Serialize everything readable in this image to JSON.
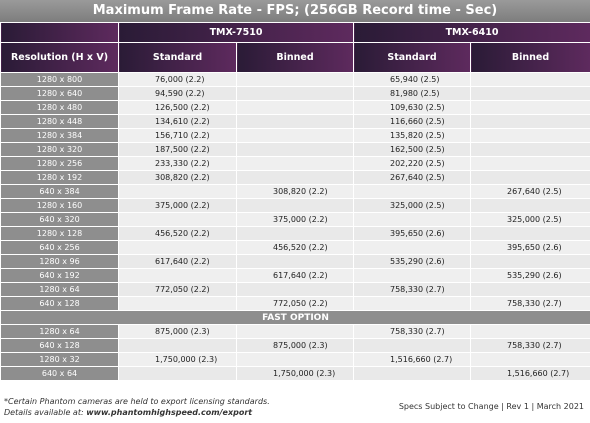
{
  "title": "Maximum Frame Rate - FPS; (256GB Record time - Sec)",
  "table": {
    "models": [
      "TMX-7510",
      "TMX-6410"
    ],
    "columns": [
      "Resolution (H x V)",
      "Standard",
      "Binned",
      "Standard",
      "Binned"
    ],
    "rows": [
      [
        "1280 x 800",
        "76,000 (2.2)",
        null,
        "65,940 (2.5)",
        null
      ],
      [
        "1280 x 640",
        "94,590 (2.2)",
        null,
        "81,980 (2.5)",
        null
      ],
      [
        "1280 x 480",
        "126,500 (2.2)",
        null,
        "109,630 (2.5)",
        null
      ],
      [
        "1280 x 448",
        "134,610 (2.2)",
        null,
        "116,660 (2.5)",
        null
      ],
      [
        "1280 x 384",
        "156,710 (2.2)",
        null,
        "135,820 (2.5)",
        null
      ],
      [
        "1280 x 320",
        "187,500 (2.2)",
        null,
        "162,500 (2.5)",
        null
      ],
      [
        "1280 x 256",
        "233,330 (2.2)",
        null,
        "202,220 (2.5)",
        null
      ],
      [
        "1280 x 192",
        "308,820 (2.2)",
        null,
        "267,640 (2.5)",
        null
      ],
      [
        "640 x 384",
        null,
        "308,820 (2.2)",
        null,
        "267,640 (2.5)"
      ],
      [
        "1280 x 160",
        "375,000 (2.2)",
        null,
        "325,000 (2.5)",
        null
      ],
      [
        "640 x 320",
        null,
        "375,000 (2.2)",
        null,
        "325,000 (2.5)"
      ],
      [
        "1280 x 128",
        "456,520 (2.2)",
        null,
        "395,650 (2.6)",
        null
      ],
      [
        "640 x 256",
        null,
        "456,520 (2.2)",
        null,
        "395,650 (2.6)"
      ],
      [
        "1280 x 96",
        "617,640 (2.2)",
        null,
        "535,290 (2.6)",
        null
      ],
      [
        "640 x 192",
        null,
        "617,640 (2.2)",
        null,
        "535,290 (2.6)"
      ],
      [
        "1280 x 64",
        "772,050 (2.2)",
        null,
        "758,330 (2.7)",
        null
      ],
      [
        "640 x 128",
        null,
        "772,050 (2.2)",
        null,
        "758,330 (2.7)"
      ]
    ],
    "fast_option": {
      "label": "FAST OPTION",
      "rows": [
        [
          "1280 x 64",
          "875,000 (2.3)",
          null,
          "758,330 (2.7)",
          null
        ],
        [
          "640 x 128",
          null,
          "875,000 (2.3)",
          null,
          "758,330 (2.7)"
        ],
        [
          "1280 x 32",
          "1,750,000 (2.3)",
          null,
          "1,516,660 (2.7)",
          null
        ],
        [
          "640 x 64",
          null,
          "1,750,000 (2.3)",
          null,
          "1,516,660 (2.7)"
        ]
      ]
    }
  },
  "footer": {
    "note": "*Certain Phantom cameras are held to export licensing standards.",
    "details_label": "Details available at:",
    "details_url": "www.phantomhighspeed.com/export",
    "specs": "Specs Subject to Change  |  Rev 1  |  March 2021"
  }
}
